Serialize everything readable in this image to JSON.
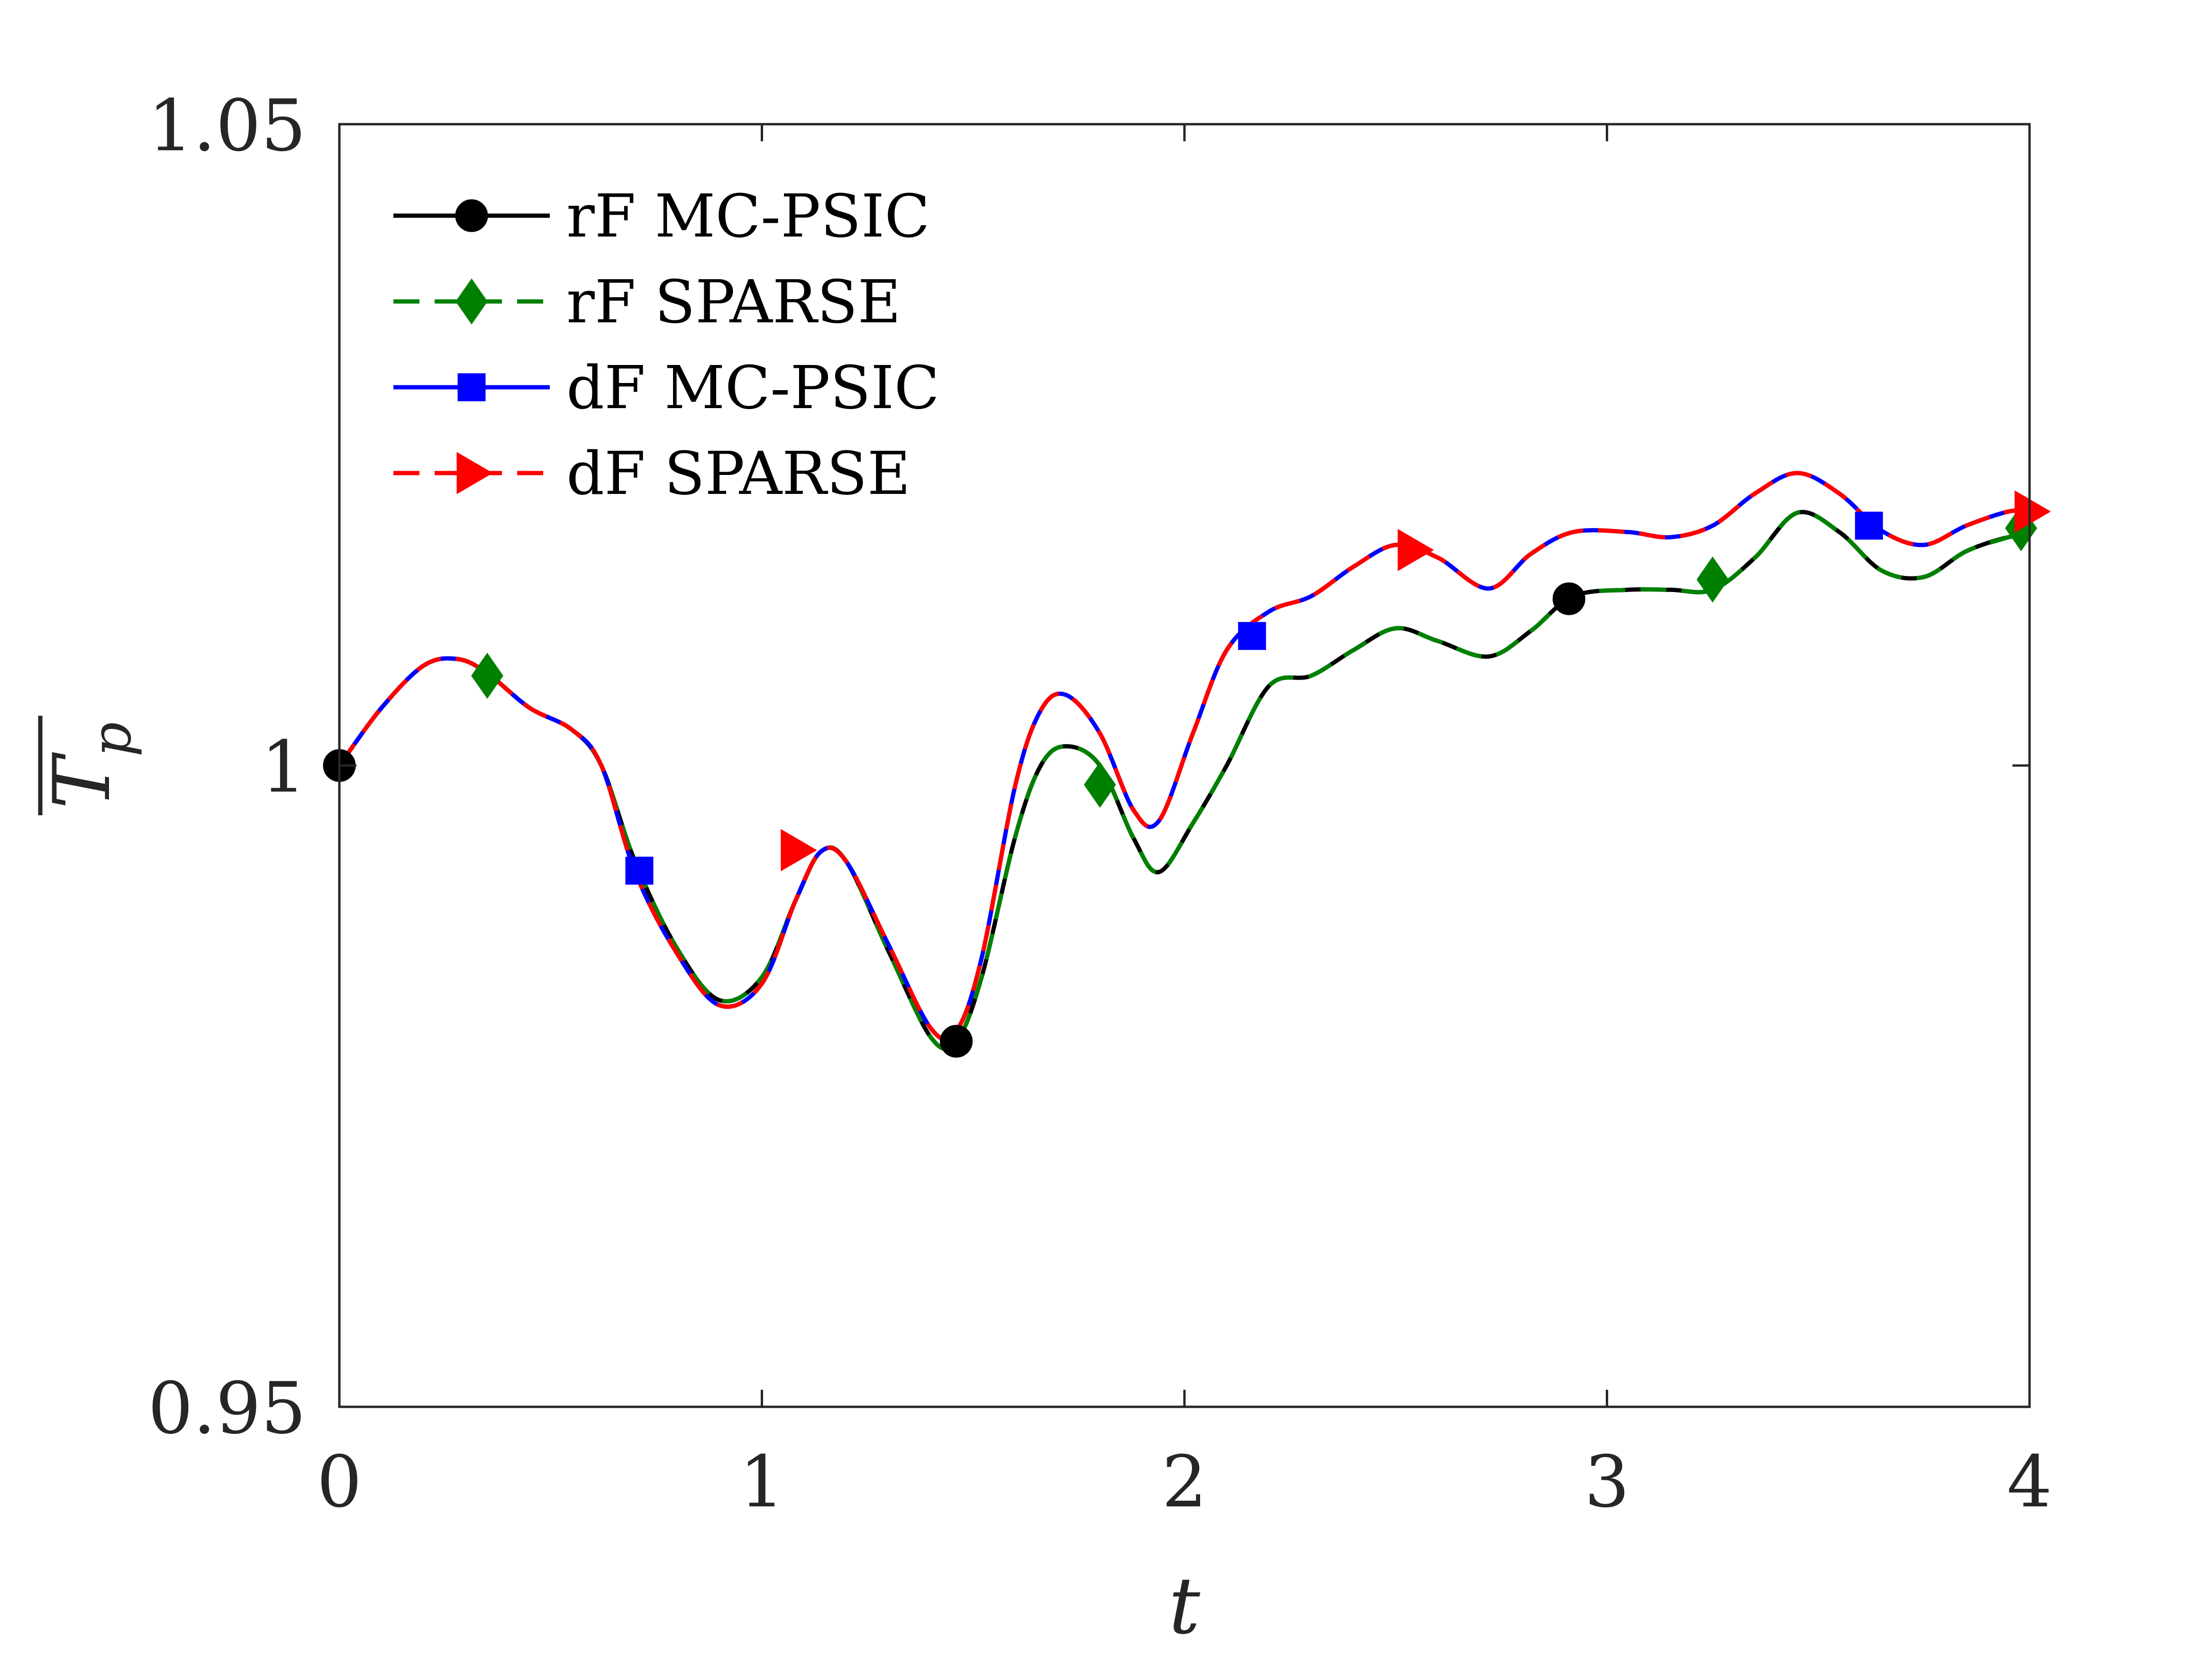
{
  "chart_data": {
    "type": "line",
    "title": "",
    "xlabel": "t",
    "ylabel": "T",
    "ylabel_subscript": "p",
    "xlim": [
      0,
      4
    ],
    "ylim": [
      0.95,
      1.05
    ],
    "xticks": [
      0,
      1,
      2,
      3,
      4
    ],
    "xtick_labels": [
      "0",
      "1",
      "2",
      "3",
      "4"
    ],
    "yticks": [
      0.95,
      1,
      1.05
    ],
    "ytick_labels": [
      "0.95",
      "1",
      "1.05"
    ],
    "grid": false,
    "legend_position": "top-left",
    "series": [
      {
        "name": "rF MC-PSIC",
        "color": "#000000",
        "dash": "solid",
        "marker": "circle",
        "x": [
          0,
          0.1,
          0.2,
          0.28,
          0.35,
          0.45,
          0.55,
          0.62,
          0.7,
          0.8,
          0.9,
          1.0,
          1.08,
          1.14,
          1.2,
          1.3,
          1.4,
          1.46,
          1.52,
          1.6,
          1.66,
          1.72,
          1.8,
          1.88,
          1.94,
          2.02,
          2.1,
          2.2,
          2.3,
          2.4,
          2.5,
          2.6,
          2.72,
          2.82,
          2.92,
          3.05,
          3.15,
          3.25,
          3.35,
          3.45,
          3.55,
          3.65,
          3.75,
          3.85,
          3.95,
          4.0
        ],
        "y": [
          1.0,
          1.0045,
          1.0078,
          1.0083,
          1.0072,
          1.0045,
          1.0028,
          1.0,
          0.9925,
          0.9857,
          0.9817,
          0.9835,
          0.9895,
          0.9933,
          0.9925,
          0.9855,
          0.9788,
          0.9785,
          0.9835,
          0.9945,
          1.0,
          1.0015,
          1.0,
          0.9943,
          0.9917,
          0.9955,
          1.0,
          1.0062,
          1.007,
          1.009,
          1.0107,
          1.0097,
          1.0085,
          1.0105,
          1.0132,
          1.0137,
          1.0137,
          1.0137,
          1.0162,
          1.0197,
          1.0182,
          1.0152,
          1.0147,
          1.0167,
          1.0178,
          1.0178
        ],
        "markers_at": [
          [
            0,
            1.0
          ],
          [
            1.46,
            0.9785
          ],
          [
            2.91,
            1.013
          ]
        ]
      },
      {
        "name": "rF SPARSE",
        "color": "#008000",
        "dash": "dashed",
        "marker": "diamond",
        "x": [
          0,
          0.1,
          0.2,
          0.28,
          0.35,
          0.45,
          0.55,
          0.62,
          0.7,
          0.8,
          0.9,
          1.0,
          1.08,
          1.14,
          1.2,
          1.3,
          1.4,
          1.46,
          1.52,
          1.6,
          1.66,
          1.72,
          1.8,
          1.88,
          1.94,
          2.02,
          2.1,
          2.2,
          2.3,
          2.4,
          2.5,
          2.6,
          2.72,
          2.82,
          2.92,
          3.05,
          3.15,
          3.25,
          3.35,
          3.45,
          3.55,
          3.65,
          3.75,
          3.85,
          3.95,
          4.0
        ],
        "y": [
          1.0,
          1.0045,
          1.0078,
          1.0083,
          1.0072,
          1.0045,
          1.0028,
          1.0,
          0.9925,
          0.9857,
          0.9817,
          0.9835,
          0.9895,
          0.9933,
          0.9925,
          0.9855,
          0.9788,
          0.9785,
          0.9835,
          0.9945,
          1.0,
          1.0015,
          1.0,
          0.9943,
          0.9917,
          0.9955,
          1.0,
          1.0062,
          1.007,
          1.009,
          1.0107,
          1.0097,
          1.0085,
          1.0105,
          1.0132,
          1.0137,
          1.0137,
          1.0137,
          1.0162,
          1.0197,
          1.0182,
          1.0152,
          1.0147,
          1.0167,
          1.0178,
          1.0183
        ],
        "markers_at": [
          [
            0.35,
            1.007
          ],
          [
            1.8,
            0.9985
          ],
          [
            3.25,
            1.0145
          ],
          [
            3.98,
            1.0185
          ]
        ]
      },
      {
        "name": "dF MC-PSIC",
        "color": "#0000ff",
        "dash": "solid",
        "marker": "square",
        "x": [
          0,
          0.1,
          0.2,
          0.28,
          0.35,
          0.45,
          0.55,
          0.62,
          0.7,
          0.8,
          0.9,
          1.0,
          1.08,
          1.14,
          1.2,
          1.3,
          1.4,
          1.46,
          1.52,
          1.6,
          1.66,
          1.72,
          1.8,
          1.88,
          1.94,
          2.02,
          2.1,
          2.2,
          2.3,
          2.4,
          2.5,
          2.6,
          2.72,
          2.82,
          2.92,
          3.05,
          3.15,
          3.25,
          3.35,
          3.45,
          3.55,
          3.65,
          3.75,
          3.85,
          3.95,
          4.0
        ],
        "y": [
          1.0,
          1.0045,
          1.0078,
          1.0083,
          1.0072,
          1.0045,
          1.0028,
          1.0,
          0.9917,
          0.9853,
          0.9813,
          0.983,
          0.9895,
          0.9933,
          0.9925,
          0.986,
          0.9795,
          0.9793,
          0.985,
          0.9985,
          1.0043,
          1.0055,
          1.0025,
          0.9965,
          0.9957,
          1.0025,
          1.009,
          1.012,
          1.0132,
          1.0155,
          1.0172,
          1.0162,
          1.0138,
          1.0165,
          1.0182,
          1.0182,
          1.0178,
          1.0187,
          1.0212,
          1.0228,
          1.0212,
          1.0183,
          1.0172,
          1.0187,
          1.0198,
          1.0198
        ],
        "markers_at": [
          [
            0.71,
            0.9918
          ],
          [
            2.16,
            1.0101
          ],
          [
            3.62,
            1.0187
          ]
        ]
      },
      {
        "name": "dF SPARSE",
        "color": "#ff0000",
        "dash": "dashed",
        "marker": "triangle-right",
        "x": [
          0,
          0.1,
          0.2,
          0.28,
          0.35,
          0.45,
          0.55,
          0.62,
          0.7,
          0.8,
          0.9,
          1.0,
          1.08,
          1.14,
          1.2,
          1.3,
          1.4,
          1.46,
          1.52,
          1.6,
          1.66,
          1.72,
          1.8,
          1.88,
          1.94,
          2.02,
          2.1,
          2.2,
          2.3,
          2.4,
          2.5,
          2.6,
          2.72,
          2.82,
          2.92,
          3.05,
          3.15,
          3.25,
          3.35,
          3.45,
          3.55,
          3.65,
          3.75,
          3.85,
          3.95,
          4.0
        ],
        "y": [
          1.0,
          1.0045,
          1.0078,
          1.0083,
          1.0072,
          1.0045,
          1.0028,
          1.0,
          0.9917,
          0.9853,
          0.9813,
          0.983,
          0.9895,
          0.9933,
          0.9925,
          0.986,
          0.9795,
          0.9793,
          0.985,
          0.9985,
          1.0043,
          1.0055,
          1.0025,
          0.9965,
          0.9957,
          1.0025,
          1.009,
          1.012,
          1.0132,
          1.0155,
          1.0172,
          1.0162,
          1.0138,
          1.0165,
          1.0182,
          1.0182,
          1.0178,
          1.0187,
          1.0212,
          1.0228,
          1.0212,
          1.0183,
          1.0172,
          1.0187,
          1.0198,
          1.0198
        ],
        "markers_at": [
          [
            1.08,
            0.9934
          ],
          [
            2.54,
            1.0168
          ],
          [
            4.0,
            1.0198
          ]
        ]
      }
    ]
  }
}
